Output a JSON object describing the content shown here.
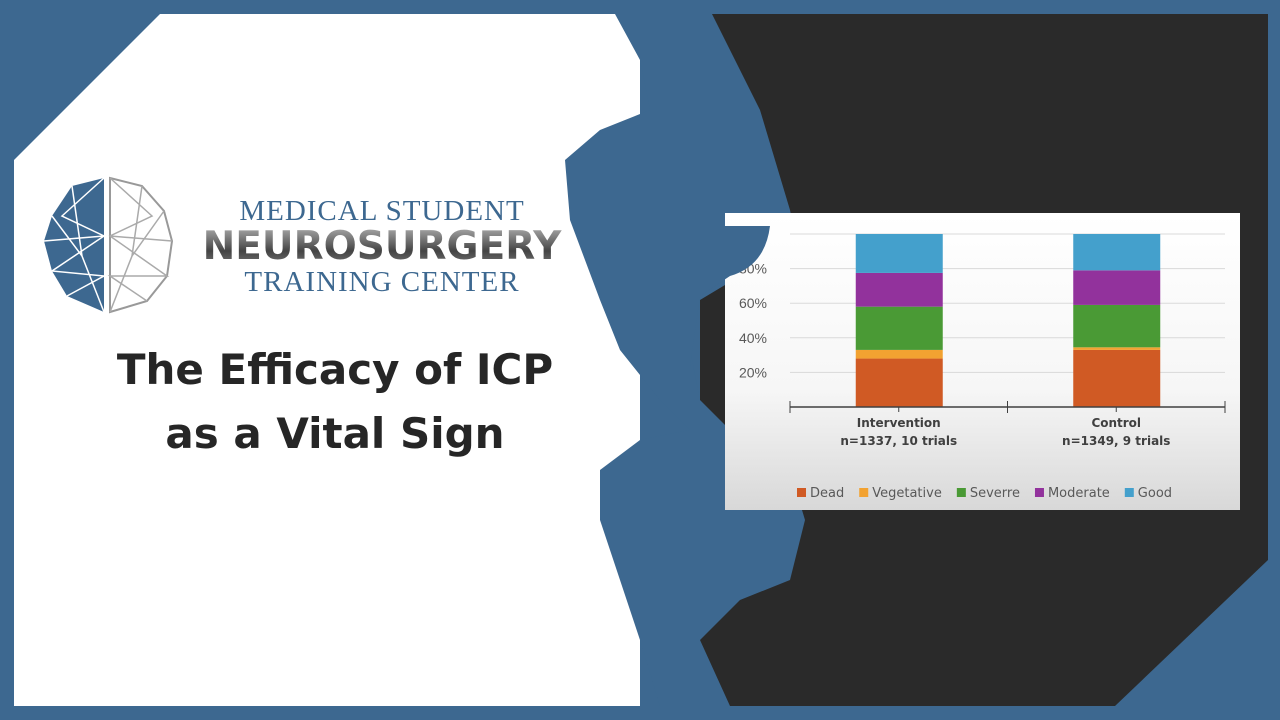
{
  "logo": {
    "line1": "MEDICAL STUDENT",
    "line2": "NEUROSURGERY",
    "line3": "TRAINING CENTER"
  },
  "title": {
    "line1": "The Efficacy of ICP",
    "line2": "as a Vital Sign"
  },
  "colors": {
    "frame_blue": "#3d6890",
    "dark_panel": "#2a2a2a",
    "dead": "#d05a24",
    "vegetative": "#f2a231",
    "severe": "#4a9a35",
    "moderate": "#92329c",
    "good": "#44a0cc"
  },
  "chart_data": {
    "type": "bar",
    "stacked": true,
    "categories": [
      "Intervention\nn=1337, 10 trials",
      "Control\nn=1349, 9 trials"
    ],
    "category_lines": [
      [
        "Intervention",
        "n=1337, 10 trials"
      ],
      [
        "Control",
        "n=1349, 9 trials"
      ]
    ],
    "series": [
      {
        "name": "Dead",
        "values": [
          28,
          33
        ]
      },
      {
        "name": "Vegetative",
        "values": [
          5,
          1.5
        ]
      },
      {
        "name": "Severre",
        "values": [
          25,
          24.5
        ]
      },
      {
        "name": "Moderate",
        "values": [
          19.5,
          20
        ]
      },
      {
        "name": "Good",
        "values": [
          22.5,
          21
        ]
      }
    ],
    "ylim": [
      0,
      100
    ],
    "yticks": [
      "20%",
      "40%",
      "60%",
      "80%"
    ],
    "ytick_values": [
      20,
      40,
      60,
      80
    ],
    "grid": true,
    "legend": "bottom"
  }
}
